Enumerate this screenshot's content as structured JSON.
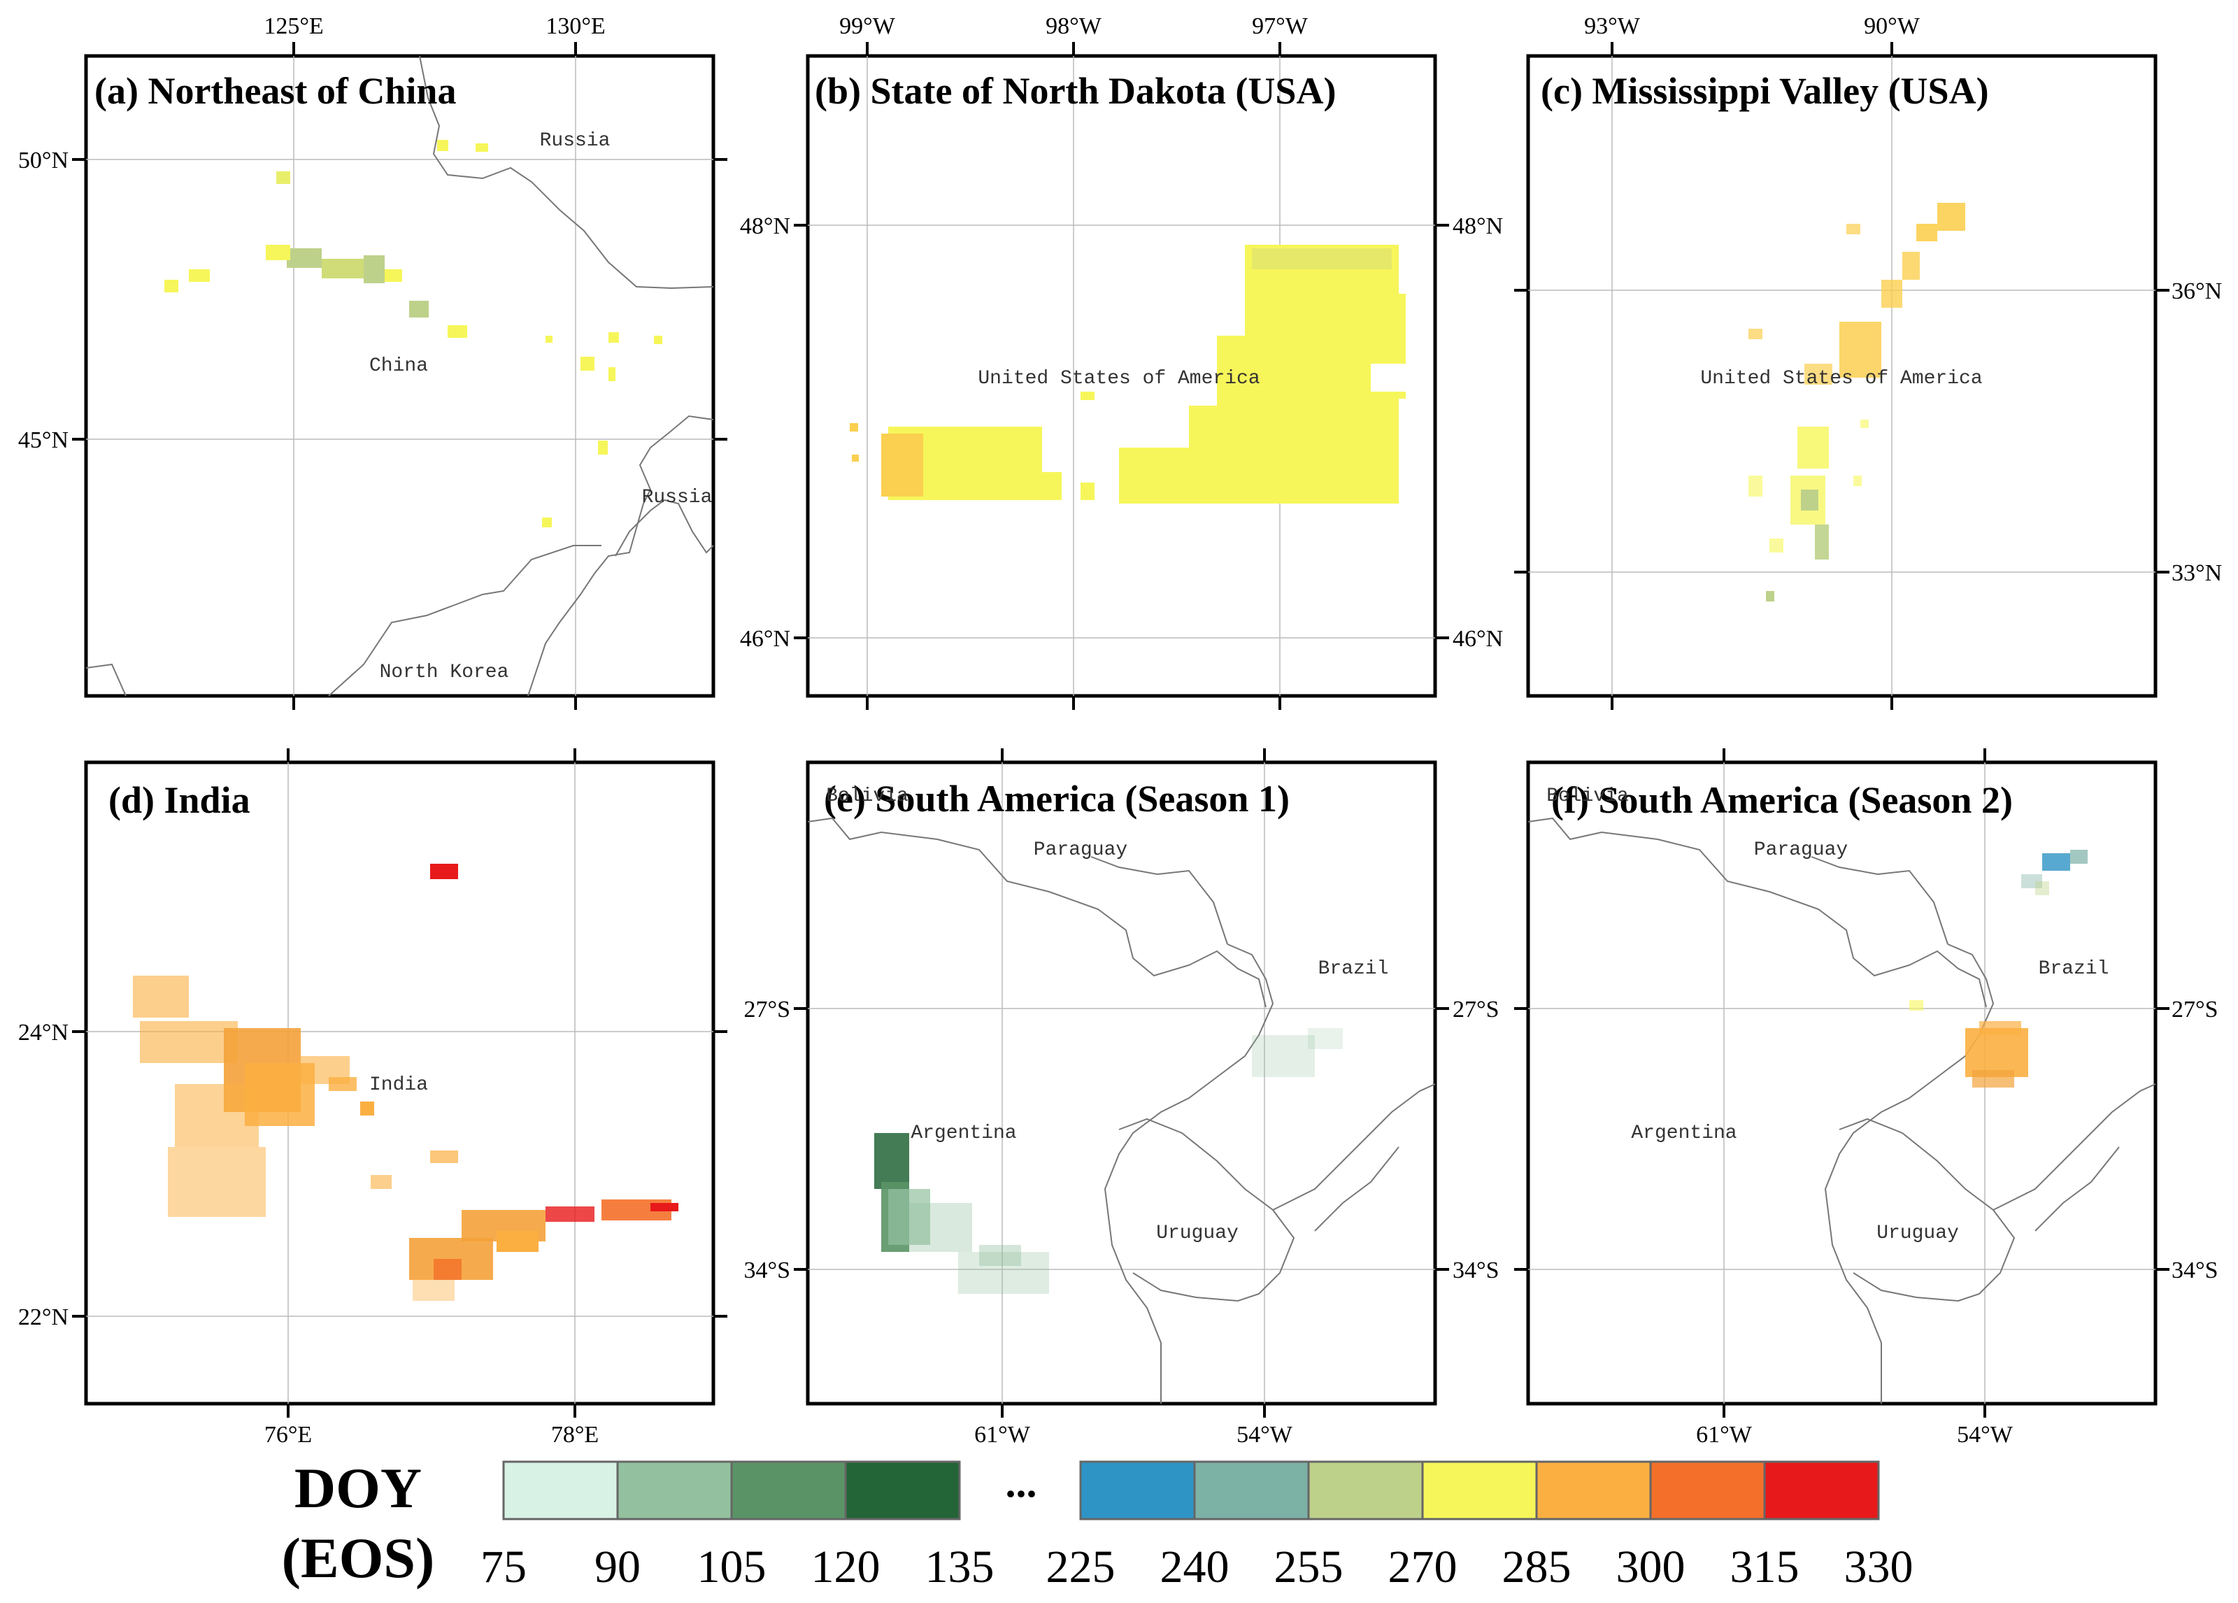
{
  "figure": {
    "panels": [
      {
        "id": "a",
        "title": "(a) Northeast of China",
        "x_ticks": [
          "125°E",
          "130°E"
        ],
        "x_tick_side": "top",
        "y_ticks": [
          "50°N",
          "45°N"
        ],
        "y_tick_side": "left",
        "places": [
          "Russia",
          "China",
          "Russia",
          "North Korea"
        ]
      },
      {
        "id": "b",
        "title": "(b) State of North Dakota (USA)",
        "x_ticks": [
          "99°W",
          "98°W",
          "97°W"
        ],
        "x_tick_side": "top",
        "y_ticks_left": [
          "48°N",
          "46°N"
        ],
        "y_ticks_right": [
          "48°N",
          "46°N"
        ],
        "places": [
          "United States of America"
        ]
      },
      {
        "id": "c",
        "title": "(c) Mississippi Valley (USA)",
        "x_ticks": [
          "93°W",
          "90°W"
        ],
        "x_tick_side": "top",
        "y_ticks": [
          "36°N",
          "33°N"
        ],
        "y_tick_side": "right",
        "places": [
          "United States of America"
        ]
      },
      {
        "id": "d",
        "title": "(d) India",
        "x_ticks": [
          "76°E",
          "78°E"
        ],
        "x_tick_side": "bottom",
        "y_ticks": [
          "24°N",
          "22°N"
        ],
        "y_tick_side": "left",
        "places": [
          "India"
        ]
      },
      {
        "id": "e",
        "title": "(e) South America (Season 1)",
        "x_ticks": [
          "61°W",
          "54°W"
        ],
        "x_tick_side": "bottom",
        "y_ticks_left": [
          "27°S",
          "34°S"
        ],
        "y_ticks_right": [
          "27°S",
          "34°S"
        ],
        "places": [
          "Bolivia",
          "Paraguay",
          "Brazil",
          "Argentina",
          "Uruguay"
        ]
      },
      {
        "id": "f",
        "title": "(f) South America (Season 2)",
        "x_ticks": [
          "61°W",
          "54°W"
        ],
        "x_tick_side": "bottom",
        "y_ticks": [
          "27°S",
          "34°S"
        ],
        "y_tick_side": "right",
        "places": [
          "Bolivia",
          "Paraguay",
          "Brazil",
          "Argentina",
          "Uruguay"
        ]
      }
    ]
  },
  "legend": {
    "title_line1": "DOY",
    "title_line2": "(EOS)",
    "ellipsis": "...",
    "group1": {
      "colors": [
        "#d8f2e6",
        "#93c19f",
        "#5a9466",
        "#236537"
      ],
      "labels": [
        "75",
        "90",
        "105",
        "120",
        "135"
      ]
    },
    "group2": {
      "colors": [
        "#2e94c6",
        "#7cb1a6",
        "#bed18a",
        "#f6f65a",
        "#fbaf41",
        "#f4702a",
        "#e8191a"
      ],
      "labels": [
        "225",
        "240",
        "255",
        "270",
        "285",
        "300",
        "315",
        "330"
      ]
    }
  }
}
